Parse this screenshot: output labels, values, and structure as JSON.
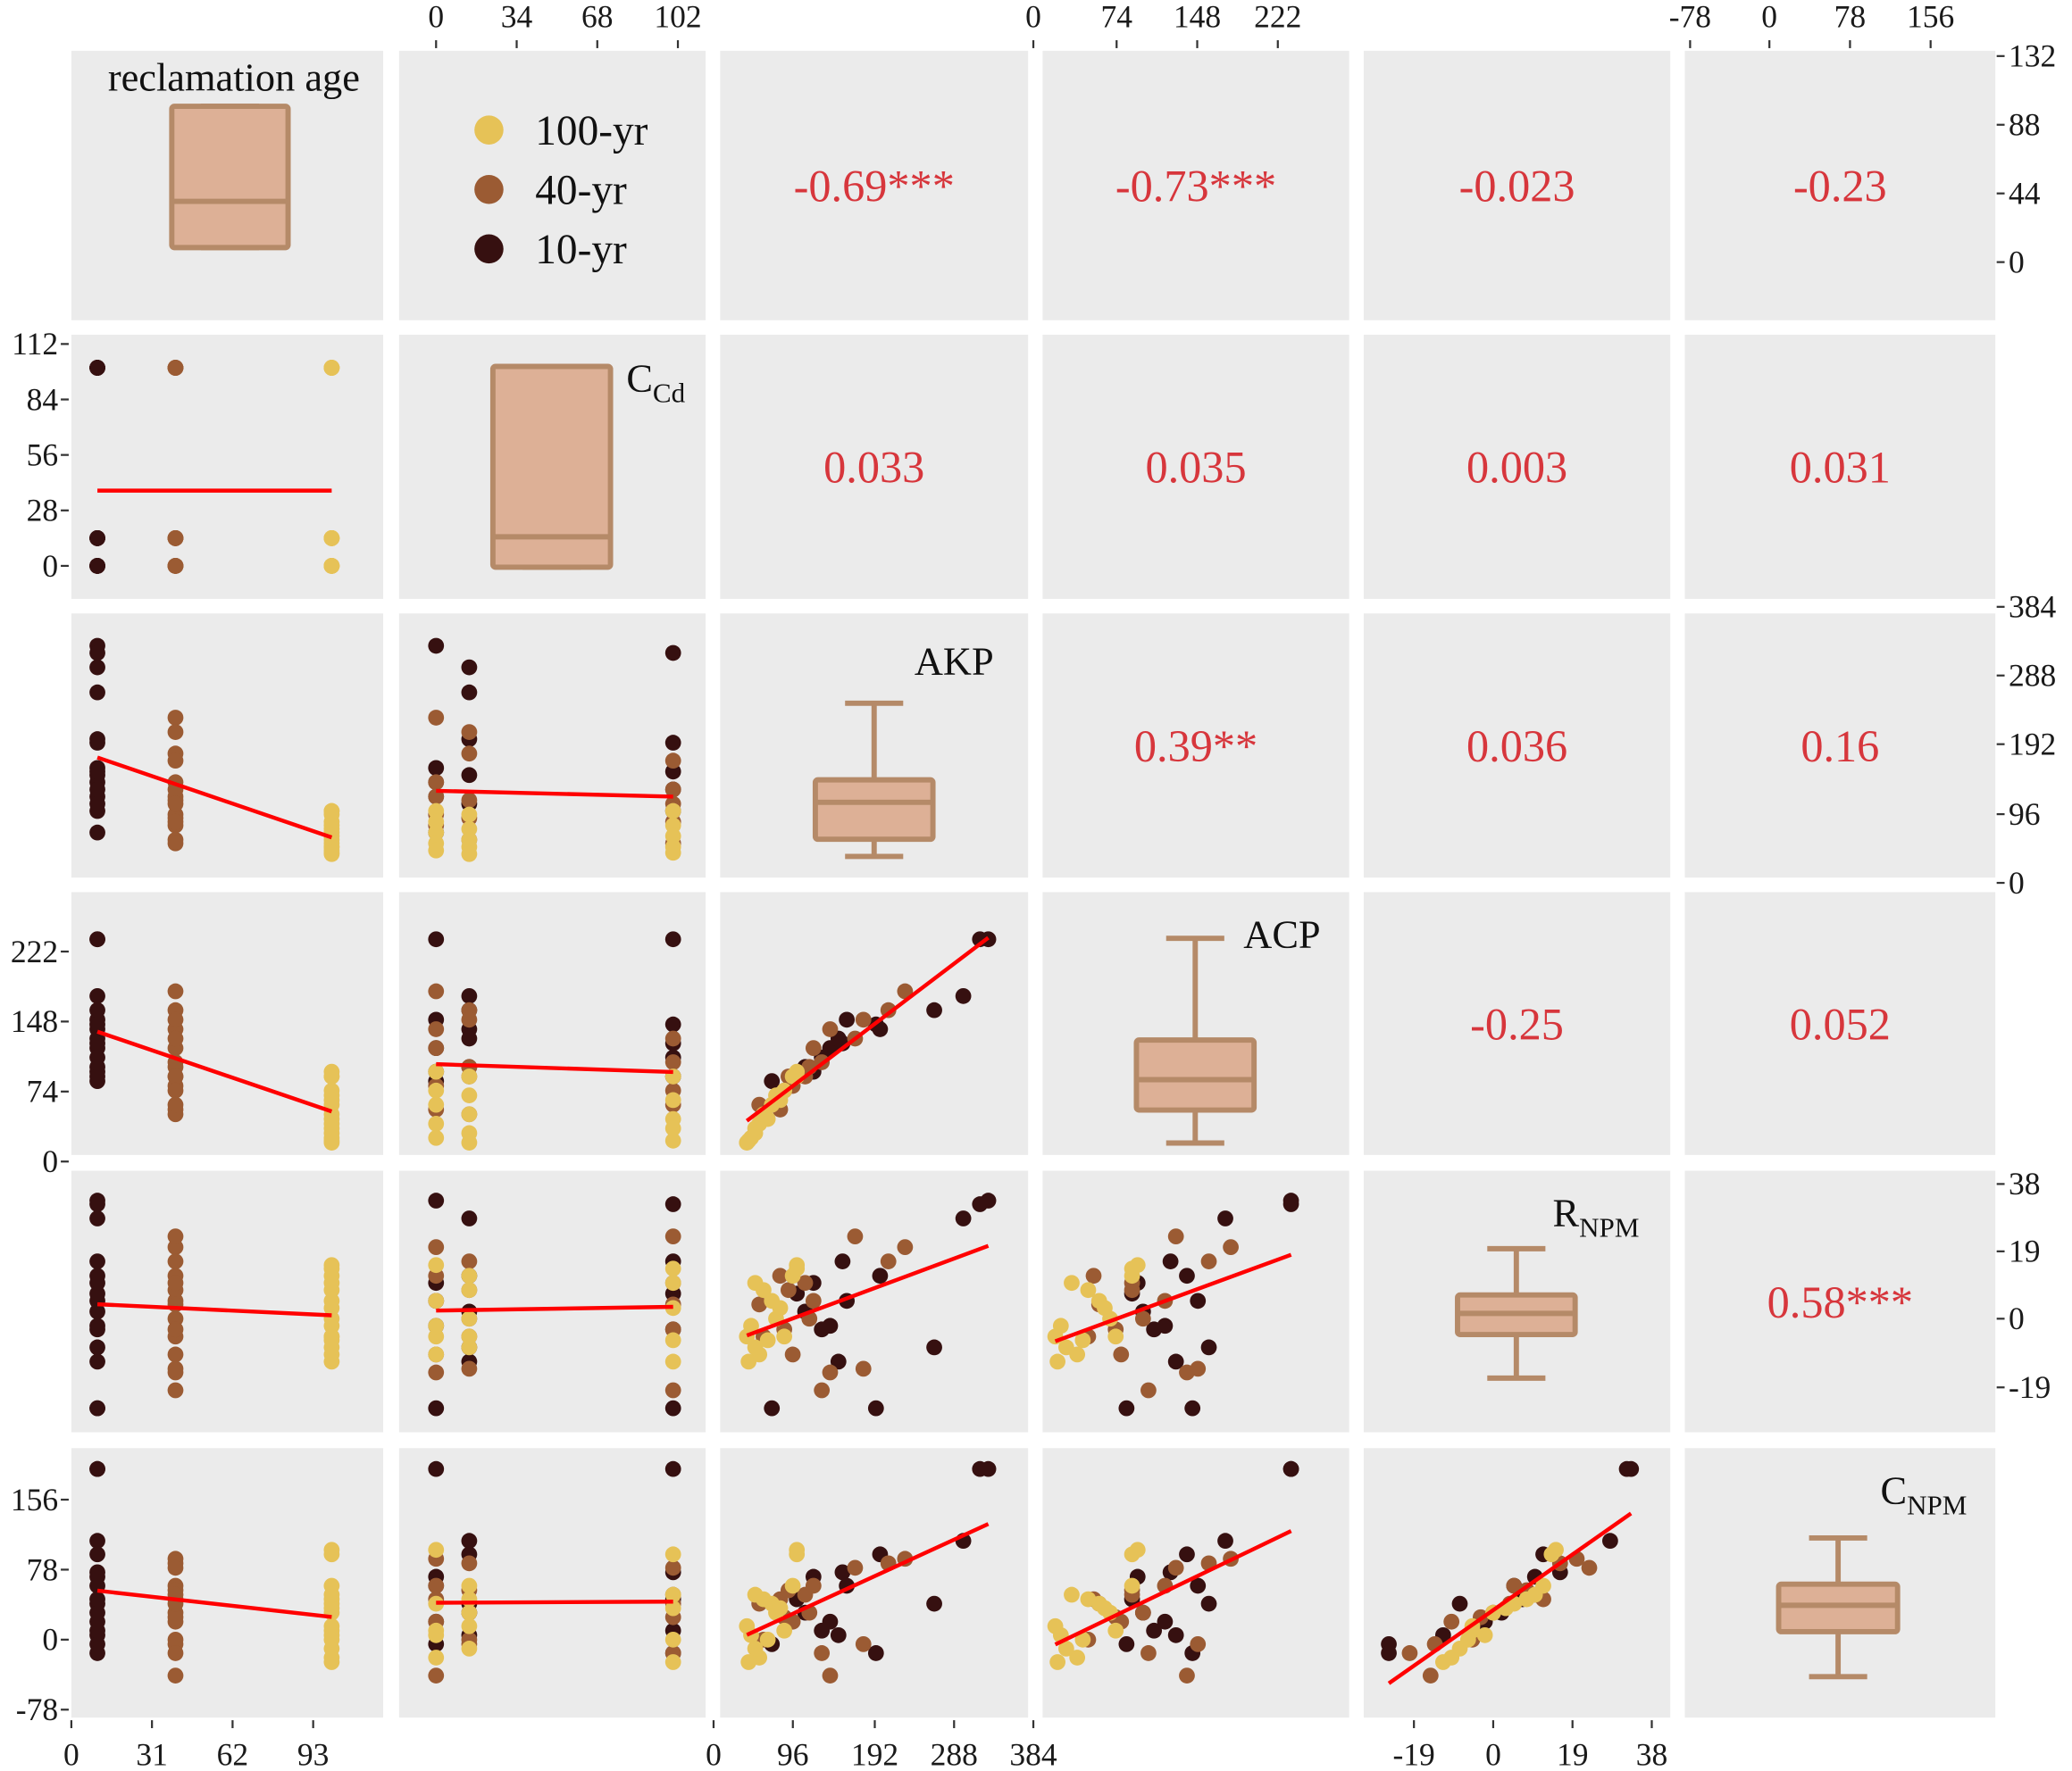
{
  "chart_data": {
    "type": "scatter",
    "title": "",
    "variables": [
      "reclamation age",
      "C_Cd",
      "AKP",
      "ACP",
      "R_NPM",
      "C_NPM"
    ],
    "diagonal_labels": [
      {
        "main": "reclamation age",
        "sub": ""
      },
      {
        "main": "C",
        "sub": "Cd"
      },
      {
        "main": "AKP",
        "sub": ""
      },
      {
        "main": "ACP",
        "sub": ""
      },
      {
        "main": "R",
        "sub": "NPM"
      },
      {
        "main": "C",
        "sub": "NPM"
      }
    ],
    "legend": {
      "placement": "top-left panel 1-2",
      "entries": [
        {
          "label": "100-yr",
          "color": "#e6c257"
        },
        {
          "label": "40-yr",
          "color": "#9b5b33"
        },
        {
          "label": "10-yr",
          "color": "#361010"
        }
      ]
    },
    "correlations": [
      {
        "row": 1,
        "col": 2,
        "text": "-0.69***"
      },
      {
        "row": 1,
        "col": 3,
        "text": "-0.73***"
      },
      {
        "row": 1,
        "col": 4,
        "text": "-0.023"
      },
      {
        "row": 1,
        "col": 5,
        "text": "-0.23"
      },
      {
        "row": 2,
        "col": 3,
        "text": "0.033"
      },
      {
        "row": 2,
        "col": 4,
        "text": "0.035"
      },
      {
        "row": 2,
        "col": 5,
        "text": "0.003"
      },
      {
        "row": 2,
        "col": 6,
        "text": "0.031"
      },
      {
        "row": 3,
        "col": 4,
        "text": "0.39**"
      },
      {
        "row": 3,
        "col": 5,
        "text": "0.036"
      },
      {
        "row": 3,
        "col": 6,
        "text": "0.16"
      },
      {
        "row": 4,
        "col": 5,
        "text": "-0.25"
      },
      {
        "row": 4,
        "col": 6,
        "text": "0.052"
      },
      {
        "row": 5,
        "col": 6,
        "text": "0.58***"
      }
    ],
    "ticks": {
      "top_col2": [
        "0",
        "34",
        "68",
        "102"
      ],
      "top_col4": [
        "0",
        "74",
        "148",
        "222"
      ],
      "top_col6": [
        "-78",
        "0",
        "78",
        "156"
      ],
      "right_row1": [
        "132",
        "88",
        "44",
        "0"
      ],
      "right_row3": [
        "384",
        "288",
        "192",
        "96",
        "0"
      ],
      "right_row5": [
        "38",
        "19",
        "0",
        "-19"
      ],
      "left_row2": [
        "112",
        "84",
        "56",
        "28",
        "0"
      ],
      "left_row4": [
        "222",
        "148",
        "74",
        "0"
      ],
      "left_row6": [
        "156",
        "78",
        "0",
        "-78"
      ],
      "bottom_col1": [
        "0",
        "31",
        "62",
        "93"
      ],
      "bottom_col3": [
        "0",
        "96",
        "192",
        "288",
        "384"
      ],
      "bottom_col5": [
        "-19",
        "0",
        "19",
        "38"
      ]
    },
    "regression_line_color": "#ff0000",
    "box_fill": "#ddb096",
    "box_stroke": "#b58a68",
    "group_colors": {
      "10": "#361010",
      "40": "#9b5b33",
      "100": "#e6c257"
    },
    "samples_columns": [
      "age",
      "cd",
      "akp",
      "acp",
      "rnpm",
      "cnpm"
    ],
    "samples": [
      [
        10,
        0,
        330,
        235,
        33,
        190
      ],
      [
        10,
        0,
        160,
        150,
        5,
        60
      ],
      [
        10,
        0,
        140,
        120,
        -2,
        20
      ],
      [
        10,
        0,
        120,
        95,
        10,
        70
      ],
      [
        10,
        0,
        70,
        85,
        -25,
        -5
      ],
      [
        10,
        14,
        300,
        175,
        28,
        110
      ],
      [
        10,
        14,
        265,
        160,
        -8,
        40
      ],
      [
        10,
        14,
        200,
        140,
        12,
        95
      ],
      [
        10,
        14,
        150,
        130,
        -12,
        5
      ],
      [
        10,
        14,
        110,
        100,
        2,
        30
      ],
      [
        10,
        100,
        320,
        235,
        32,
        190
      ],
      [
        10,
        100,
        195,
        145,
        -25,
        -15
      ],
      [
        10,
        100,
        155,
        125,
        16,
        75
      ],
      [
        10,
        100,
        130,
        110,
        -3,
        10
      ],
      [
        10,
        100,
        100,
        90,
        7,
        45
      ],
      [
        40,
        0,
        230,
        180,
        20,
        90
      ],
      [
        40,
        0,
        140,
        140,
        -15,
        -40
      ],
      [
        40,
        0,
        120,
        120,
        5,
        60
      ],
      [
        40,
        0,
        95,
        80,
        -10,
        20
      ],
      [
        40,
        0,
        80,
        55,
        12,
        45
      ],
      [
        40,
        14,
        210,
        160,
        16,
        85
      ],
      [
        40,
        14,
        180,
        150,
        -14,
        -5
      ],
      [
        40,
        14,
        115,
        100,
        0,
        30
      ],
      [
        40,
        14,
        90,
        90,
        8,
        55
      ],
      [
        40,
        14,
        60,
        50,
        -5,
        0
      ],
      [
        40,
        100,
        170,
        130,
        23,
        80
      ],
      [
        40,
        100,
        130,
        105,
        -20,
        -15
      ],
      [
        40,
        100,
        110,
        90,
        10,
        50
      ],
      [
        40,
        100,
        85,
        75,
        -3,
        25
      ],
      [
        40,
        100,
        55,
        60,
        4,
        40
      ],
      [
        100,
        0,
        100,
        95,
        15,
        100
      ],
      [
        100,
        0,
        85,
        75,
        -5,
        10
      ],
      [
        100,
        0,
        70,
        60,
        5,
        40
      ],
      [
        100,
        0,
        55,
        40,
        -10,
        -20
      ],
      [
        100,
        0,
        45,
        25,
        -2,
        5
      ],
      [
        100,
        14,
        95,
        90,
        12,
        60
      ],
      [
        100,
        14,
        75,
        70,
        0,
        30
      ],
      [
        100,
        14,
        60,
        50,
        8,
        45
      ],
      [
        100,
        14,
        50,
        30,
        -8,
        -10
      ],
      [
        100,
        14,
        40,
        20,
        -5,
        15
      ],
      [
        100,
        100,
        100,
        90,
        14,
        95
      ],
      [
        100,
        100,
        80,
        65,
        3,
        35
      ],
      [
        100,
        100,
        65,
        45,
        -6,
        0
      ],
      [
        100,
        100,
        50,
        35,
        10,
        50
      ],
      [
        100,
        100,
        42,
        22,
        -12,
        -25
      ]
    ]
  }
}
